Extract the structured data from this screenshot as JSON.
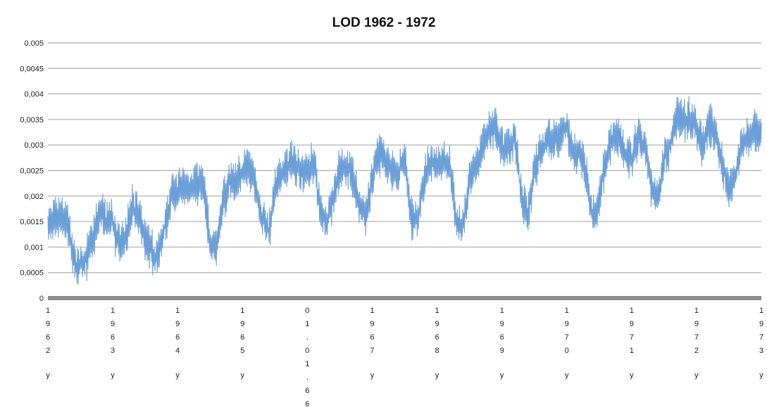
{
  "chart_data": {
    "type": "line",
    "title": "LOD 1962 - 1972",
    "xlabel": "",
    "ylabel": "",
    "ylim": [
      0,
      0.005
    ],
    "y_ticks": [
      "0",
      "0,0005",
      "0,001",
      "0,0015",
      "0,002",
      "0,0025",
      "0,003",
      "0,0035",
      "0,004",
      "0,0045",
      "0,005"
    ],
    "x_tick_labels": [
      "1962y",
      "1963y",
      "1964y",
      "1965y",
      "01.01.66",
      "1967y",
      "1968y",
      "1969y",
      "1970y",
      "1971y",
      "1972y",
      "1973y"
    ],
    "grid": true,
    "legend": "none",
    "series_color": "#6a9fd8",
    "series": [
      {
        "x": [
          1962.0,
          1962.1,
          1962.2,
          1962.3,
          1962.4,
          1962.5,
          1962.6,
          1962.7,
          1962.8,
          1962.9,
          1963.0,
          1963.1,
          1963.2,
          1963.3,
          1963.4,
          1963.5,
          1963.6,
          1963.7,
          1963.8,
          1963.9,
          1964.0,
          1964.1,
          1964.2,
          1964.3,
          1964.4,
          1964.5,
          1964.6,
          1964.7,
          1964.8,
          1964.9,
          1965.0,
          1965.1,
          1965.2,
          1965.3,
          1965.4,
          1965.5,
          1965.6,
          1965.7,
          1965.8,
          1965.9,
          1966.0,
          1966.1,
          1966.2,
          1966.3,
          1966.4,
          1966.5,
          1966.6,
          1966.7,
          1966.8,
          1966.9,
          1967.0,
          1967.1,
          1967.2,
          1967.3,
          1967.4,
          1967.5,
          1967.6,
          1967.7,
          1967.8,
          1967.9,
          1968.0,
          1968.1,
          1968.2,
          1968.3,
          1968.4,
          1968.5,
          1968.6,
          1968.7,
          1968.8,
          1968.9,
          1969.0,
          1969.1,
          1969.2,
          1969.3,
          1969.4,
          1969.5,
          1969.6,
          1969.7,
          1969.8,
          1969.9,
          1970.0,
          1970.1,
          1970.2,
          1970.3,
          1970.4,
          1970.5,
          1970.6,
          1970.7,
          1970.8,
          1970.9,
          1971.0,
          1971.1,
          1971.2,
          1971.3,
          1971.4,
          1971.5,
          1971.6,
          1971.7,
          1971.8,
          1971.9,
          1972.0,
          1972.1,
          1972.2,
          1972.3,
          1972.4,
          1972.5,
          1972.6,
          1972.7,
          1972.8,
          1972.9,
          1973.0
        ],
        "y": [
          0.0014,
          0.0015,
          0.0016,
          0.0015,
          0.0007,
          0.0006,
          0.0008,
          0.0012,
          0.0017,
          0.0015,
          0.0015,
          0.001,
          0.0012,
          0.0018,
          0.0016,
          0.0012,
          0.0009,
          0.0008,
          0.0014,
          0.002,
          0.0021,
          0.0022,
          0.0022,
          0.0023,
          0.0022,
          0.0011,
          0.001,
          0.0019,
          0.0023,
          0.0023,
          0.0025,
          0.0026,
          0.0022,
          0.0016,
          0.0013,
          0.0021,
          0.0024,
          0.0026,
          0.0027,
          0.0025,
          0.0025,
          0.0027,
          0.0017,
          0.0015,
          0.002,
          0.0025,
          0.0026,
          0.0024,
          0.0018,
          0.0016,
          0.0023,
          0.0028,
          0.0027,
          0.0025,
          0.0024,
          0.0028,
          0.0016,
          0.0015,
          0.0023,
          0.0027,
          0.0026,
          0.0027,
          0.0026,
          0.0015,
          0.0014,
          0.0022,
          0.0026,
          0.003,
          0.0033,
          0.0033,
          0.0029,
          0.003,
          0.0032,
          0.0019,
          0.0016,
          0.0025,
          0.0029,
          0.0031,
          0.0031,
          0.0032,
          0.0034,
          0.0028,
          0.0029,
          0.0024,
          0.0016,
          0.0019,
          0.0028,
          0.0031,
          0.0032,
          0.0028,
          0.0027,
          0.0032,
          0.003,
          0.0022,
          0.0019,
          0.0028,
          0.003,
          0.0036,
          0.0034,
          0.0035,
          0.0033,
          0.003,
          0.0034,
          0.0032,
          0.0026,
          0.0021,
          0.0024,
          0.003,
          0.0032,
          0.0033,
          0.0032
        ]
      }
    ]
  }
}
